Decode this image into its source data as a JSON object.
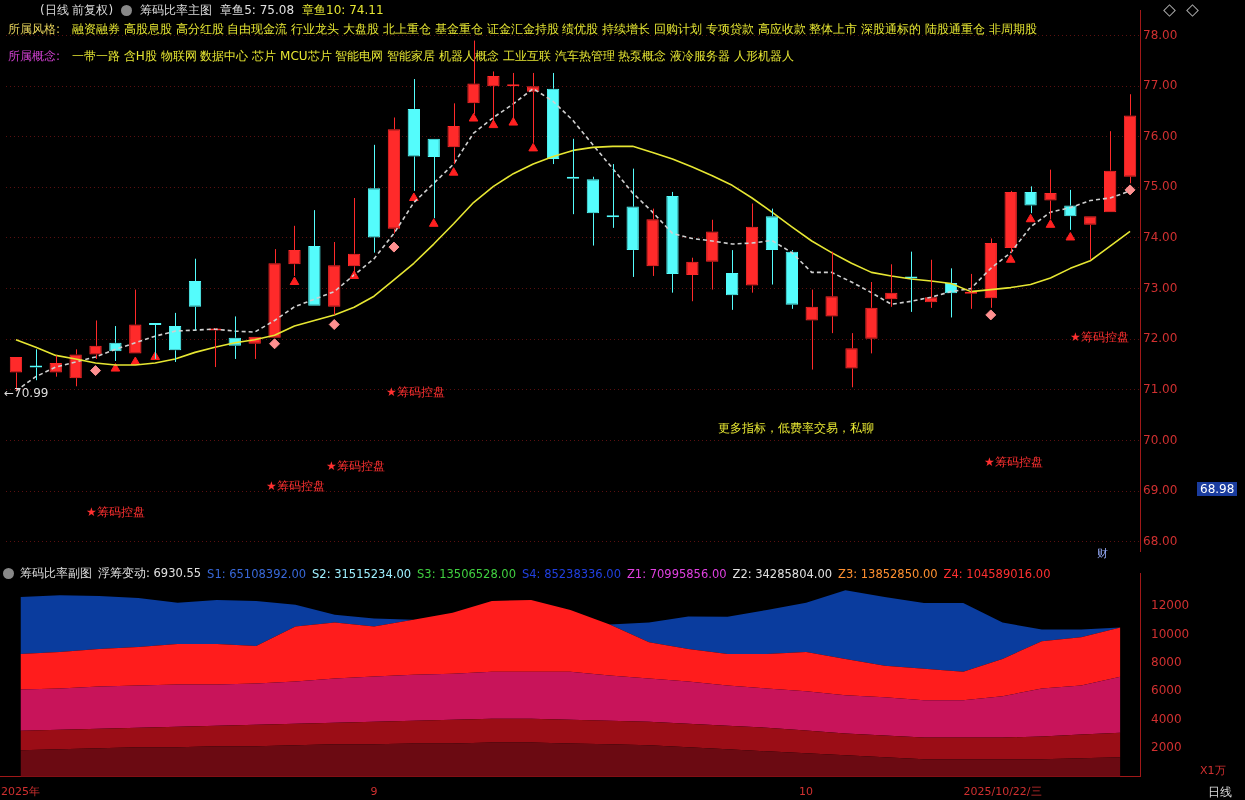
{
  "chart_data": [
    {
      "type": "candlestick",
      "title": "筹码比率主图",
      "subtitle": "(日线 前复权)",
      "categories": [
        null,
        null,
        null,
        null,
        null,
        null,
        null,
        null,
        null,
        null,
        null,
        null,
        null,
        null,
        null,
        null,
        null,
        null,
        null,
        null,
        null,
        null,
        null,
        null,
        null,
        null,
        null,
        null,
        null,
        null,
        null,
        null,
        null,
        null,
        null,
        null,
        null,
        null,
        null,
        null,
        null,
        null,
        null,
        null,
        null,
        null,
        null,
        null,
        null,
        null,
        null,
        null,
        null,
        null,
        null,
        null,
        null
      ],
      "ohlc": [
        [
          71.34,
          71.65,
          70.99,
          71.65
        ],
        [
          71.46,
          71.8,
          71.19,
          71.44
        ],
        [
          71.34,
          71.68,
          71.26,
          71.53
        ],
        [
          71.23,
          71.8,
          71.07,
          71.7
        ],
        [
          71.7,
          72.37,
          71.61,
          71.87
        ],
        [
          71.93,
          72.26,
          71.57,
          71.76
        ],
        [
          71.72,
          72.98,
          71.72,
          72.29
        ],
        [
          72.3,
          72.31,
          71.61,
          72.28
        ],
        [
          72.26,
          72.52,
          71.55,
          71.78
        ],
        [
          73.15,
          73.59,
          72.18,
          72.64
        ],
        [
          72.17,
          72.22,
          71.45,
          72.2
        ],
        [
          72.03,
          72.45,
          71.61,
          71.87
        ],
        [
          71.91,
          72.05,
          71.61,
          72.05
        ],
        [
          72.03,
          73.78,
          72.03,
          73.5
        ],
        [
          73.48,
          74.24,
          73.25,
          73.76
        ],
        [
          73.84,
          74.55,
          72.66,
          72.66
        ],
        [
          72.64,
          73.92,
          72.48,
          73.46
        ],
        [
          73.44,
          74.79,
          73.25,
          73.69
        ],
        [
          74.98,
          75.84,
          73.71,
          74.01
        ],
        [
          74.18,
          76.38,
          74.09,
          76.15
        ],
        [
          76.55,
          77.14,
          74.93,
          75.61
        ],
        [
          75.96,
          75.96,
          74.39,
          75.6
        ],
        [
          75.79,
          76.66,
          75.46,
          76.21
        ],
        [
          76.66,
          77.9,
          76.45,
          77.05
        ],
        [
          77.0,
          77.29,
          76.3,
          77.2
        ],
        [
          77.0,
          77.26,
          76.3,
          77.02
        ],
        [
          76.89,
          77.26,
          75.88,
          77.0
        ],
        [
          76.95,
          77.26,
          75.46,
          75.56
        ],
        [
          75.19,
          75.96,
          74.47,
          75.17
        ],
        [
          75.16,
          75.21,
          73.85,
          74.49
        ],
        [
          74.43,
          75.46,
          74.2,
          74.41
        ],
        [
          74.62,
          75.37,
          73.23,
          73.76
        ],
        [
          73.44,
          74.58,
          73.25,
          74.37
        ],
        [
          74.83,
          74.91,
          72.92,
          73.29
        ],
        [
          73.27,
          73.61,
          72.75,
          73.53
        ],
        [
          73.53,
          74.36,
          72.98,
          74.13
        ],
        [
          73.31,
          73.76,
          72.58,
          72.87
        ],
        [
          73.06,
          74.68,
          72.92,
          74.22
        ],
        [
          74.43,
          74.58,
          73.08,
          73.76
        ],
        [
          73.73,
          73.76,
          72.6,
          72.68
        ],
        [
          72.37,
          72.98,
          71.4,
          72.64
        ],
        [
          72.45,
          73.73,
          72.12,
          72.85
        ],
        [
          71.42,
          72.12,
          71.05,
          71.82
        ],
        [
          72.01,
          73.13,
          71.72,
          72.62
        ],
        [
          72.79,
          73.48,
          72.64,
          72.92
        ],
        [
          73.22,
          73.73,
          72.54,
          73.2
        ],
        [
          72.73,
          73.57,
          72.62,
          72.83
        ],
        [
          73.11,
          73.4,
          72.43,
          72.91
        ],
        [
          72.9,
          73.29,
          72.6,
          72.93
        ],
        [
          72.81,
          73.99,
          72.62,
          73.9
        ],
        [
          73.8,
          74.93,
          73.71,
          74.91
        ],
        [
          74.91,
          75.02,
          74.49,
          74.64
        ],
        [
          74.74,
          75.35,
          74.37,
          74.89
        ],
        [
          74.64,
          74.95,
          74.16,
          74.43
        ],
        [
          74.26,
          74.43,
          73.57,
          74.43
        ],
        [
          74.51,
          76.11,
          74.51,
          75.33
        ],
        [
          75.21,
          76.84,
          75.08,
          76.42
        ]
      ],
      "colors": [
        "#ff2a2a",
        "#54fcfc",
        "#ff2a2a",
        "#ff2a2a",
        "#ff2a2a",
        "#54fcfc",
        "#ff2a2a",
        "#54fcfc",
        "#54fcfc",
        "#54fcfc",
        "#ff2a2a",
        "#54fcfc",
        "#ff2a2a",
        "#ff2a2a",
        "#ff2a2a",
        "#54fcfc",
        "#ff2a2a",
        "#ff2a2a",
        "#54fcfc",
        "#ff2a2a",
        "#54fcfc",
        "#54fcfc",
        "#ff2a2a",
        "#ff2a2a",
        "#ff2a2a",
        "#ff2a2a",
        "#ff2a2a",
        "#54fcfc",
        "#54fcfc",
        "#54fcfc",
        "#54fcfc",
        "#54fcfc",
        "#ff2a2a",
        "#54fcfc",
        "#ff2a2a",
        "#ff2a2a",
        "#54fcfc",
        "#ff2a2a",
        "#54fcfc",
        "#54fcfc",
        "#ff2a2a",
        "#ff2a2a",
        "#ff2a2a",
        "#ff2a2a",
        "#ff2a2a",
        "#54fcfc",
        "#ff2a2a",
        "#54fcfc",
        "#ff2a2a",
        "#ff2a2a",
        "#ff2a2a",
        "#54fcfc",
        "#ff2a2a",
        "#54fcfc",
        "#ff2a2a",
        "#ff2a2a",
        "#ff2a2a"
      ],
      "series": [
        {
          "type": "line",
          "color": "#e6e632",
          "values": [
            71.99,
            71.84,
            71.68,
            71.61,
            71.53,
            71.49,
            71.49,
            71.53,
            71.61,
            71.74,
            71.84,
            71.93,
            71.99,
            72.08,
            72.26,
            72.37,
            72.48,
            72.63,
            72.85,
            73.17,
            73.5,
            73.88,
            74.28,
            74.7,
            75.02,
            75.27,
            75.46,
            75.61,
            75.73,
            75.79,
            75.81,
            75.81,
            75.69,
            75.56,
            75.4,
            75.23,
            75.04,
            74.79,
            74.51,
            74.22,
            73.94,
            73.71,
            73.5,
            73.32,
            73.25,
            73.19,
            73.15,
            73.1,
            72.94,
            72.98,
            73.02,
            73.08,
            73.21,
            73.4,
            73.55,
            73.84,
            74.13
          ]
        },
        {
          "type": "line",
          "color": "#d0d0d0",
          "line_style": "dashed",
          "values": [
            70.98,
            71.26,
            71.45,
            71.55,
            71.65,
            71.8,
            71.93,
            72.06,
            72.16,
            72.18,
            72.2,
            72.16,
            72.14,
            72.37,
            72.64,
            72.79,
            72.94,
            73.27,
            73.59,
            74.09,
            74.7,
            75.08,
            75.46,
            76.07,
            76.38,
            76.65,
            76.95,
            76.7,
            76.32,
            75.84,
            75.37,
            74.89,
            74.51,
            74.09,
            73.99,
            73.94,
            73.88,
            73.9,
            73.95,
            73.71,
            73.32,
            73.32,
            73.13,
            72.92,
            72.69,
            72.75,
            72.83,
            72.94,
            73.0,
            73.4,
            73.71,
            74.22,
            74.51,
            74.6,
            74.74,
            74.79,
            74.93
          ]
        },
        {
          "type": "scatter",
          "marker": "triangle",
          "color": "#ff2020",
          "values": [
            null,
            null,
            null,
            null,
            null,
            71.42,
            71.55,
            71.65,
            null,
            null,
            null,
            null,
            null,
            null,
            73.13,
            null,
            null,
            73.25,
            null,
            null,
            74.79,
            74.28,
            75.29,
            76.36,
            76.23,
            76.28,
            75.77,
            null,
            null,
            null,
            null,
            null,
            null,
            null,
            null,
            null,
            null,
            null,
            null,
            null,
            null,
            null,
            null,
            null,
            null,
            null,
            null,
            null,
            null,
            null,
            73.57,
            74.37,
            74.26,
            74.01,
            null,
            null,
            null
          ]
        },
        {
          "type": "scatter",
          "marker": "diamond",
          "color": "#ff9090",
          "values": [
            null,
            null,
            null,
            null,
            71.38,
            null,
            null,
            null,
            null,
            null,
            null,
            null,
            null,
            71.91,
            null,
            null,
            72.29,
            null,
            null,
            73.82,
            null,
            null,
            null,
            null,
            null,
            null,
            null,
            null,
            null,
            null,
            null,
            null,
            null,
            null,
            null,
            null,
            null,
            null,
            null,
            null,
            null,
            null,
            null,
            null,
            null,
            null,
            null,
            null,
            null,
            72.48,
            null,
            null,
            null,
            null,
            null,
            null,
            74.95
          ]
        }
      ],
      "ylim": [
        67.8,
        78.5
      ],
      "yticks": [
        {
          "value": 68,
          "label": "68.00"
        },
        {
          "value": 69,
          "label": "69.00"
        },
        {
          "value": 70,
          "label": "70.00"
        },
        {
          "value": 71,
          "label": "71.00"
        },
        {
          "value": 72,
          "label": "72.00"
        },
        {
          "value": 73,
          "label": "73.00"
        },
        {
          "value": 74,
          "label": "74.00"
        },
        {
          "value": 75,
          "label": "75.00"
        },
        {
          "value": 76,
          "label": "76.00"
        },
        {
          "value": 77,
          "label": "77.00"
        },
        {
          "value": 78,
          "label": "78.00"
        }
      ],
      "grid": "y",
      "tick_labels": "y",
      "annotations": [
        "章鱼5: 75.08",
        "章鱼10: 74.11",
        "所属风格:",
        "融资融券 高股息股 高分红股 自由现金流 行业龙头 大盘股 北上重仓 基金重仓 证金汇金持股 绩优股 持续增长 回购计划 专项贷款 高应收款 整体上市 深股通标的 陆股通重仓 非周期股",
        "所属概念:",
        "一带一路 含H股 物联网 数据中心 芯片 MCU芯片 智能电网 智能家居 机器人概念 工业互联 汽车热管理 热泵概念 液冷服务器 人形机器人",
        "★筹码控盘",
        "★筹码控盘",
        "★筹码控盘",
        "★筹码控盘",
        "★筹码控盘",
        "★筹码控盘",
        "更多指标，低费率交易，私聊",
        "68.98",
        "财",
        {
          "text": "←70.99",
          "y": 70.99
        }
      ]
    },
    {
      "type": "area",
      "title": "筹码比率副图",
      "stacked": true,
      "categories": [
        "2025年",
        null,
        null,
        null,
        null,
        null,
        null,
        null,
        null,
        "9",
        null,
        null,
        null,
        null,
        null,
        null,
        null,
        null,
        null,
        null,
        "10",
        null,
        null,
        null,
        null,
        "2025/10/22/三",
        null,
        null,
        null
      ],
      "series": [
        {
          "color": "#6b0a12",
          "values": [
            1860,
            1930,
            2000,
            2070,
            2070,
            2140,
            2140,
            2210,
            2280,
            2280,
            2340,
            2340,
            2410,
            2410,
            2340,
            2280,
            2210,
            2070,
            1930,
            1790,
            1660,
            1520,
            1380,
            1240,
            1240,
            1240,
            1240,
            1310,
            1380
          ]
        },
        {
          "color": "#9b0d16",
          "values": [
            1380,
            1380,
            1380,
            1380,
            1450,
            1450,
            1520,
            1520,
            1520,
            1590,
            1590,
            1660,
            1660,
            1660,
            1660,
            1660,
            1660,
            1660,
            1660,
            1660,
            1590,
            1520,
            1520,
            1520,
            1520,
            1520,
            1590,
            1660,
            1720
          ]
        },
        {
          "color": "#c8145a",
          "values": [
            2900,
            2900,
            2970,
            2970,
            2970,
            2900,
            2900,
            2970,
            3100,
            3170,
            3240,
            3240,
            3310,
            3310,
            3380,
            3170,
            3030,
            2970,
            2830,
            2760,
            2760,
            2690,
            2690,
            2620,
            2620,
            2900,
            3380,
            3450,
            3930
          ]
        },
        {
          "color": "#ff1c1c",
          "values": [
            2480,
            2550,
            2620,
            2690,
            2830,
            2830,
            2620,
            3860,
            3930,
            3520,
            3860,
            4280,
            4970,
            5030,
            4340,
            3590,
            2550,
            2280,
            2210,
            2410,
            2760,
            2550,
            2210,
            2210,
            2000,
            2620,
            3310,
            3380,
            3450
          ]
        },
        {
          "color": "#0a3c9e",
          "values": [
            4000,
            4000,
            3720,
            3450,
            2900,
            3100,
            3170,
            1520,
            550,
            550,
            0,
            0,
            0,
            0,
            0,
            0,
            1380,
            2280,
            2620,
            3100,
            3450,
            4830,
            4830,
            4620,
            4830,
            2550,
            830,
            550,
            0
          ]
        }
      ],
      "ylim": [
        0,
        14300
      ],
      "yticks": [
        2000,
        4000,
        6000,
        8000,
        10000,
        12000
      ],
      "annotations": [
        "浮筹变动: 6930.55",
        "S1: 65108392.00",
        "S2: 31515234.00",
        "S3: 13506528.00",
        "S4: 85238336.00",
        "Z1: 70995856.00",
        "Z2: 34285804.00",
        "Z3: 13852850.00",
        "Z4: 104589016.00",
        "X1万",
        "日线"
      ]
    }
  ]
}
